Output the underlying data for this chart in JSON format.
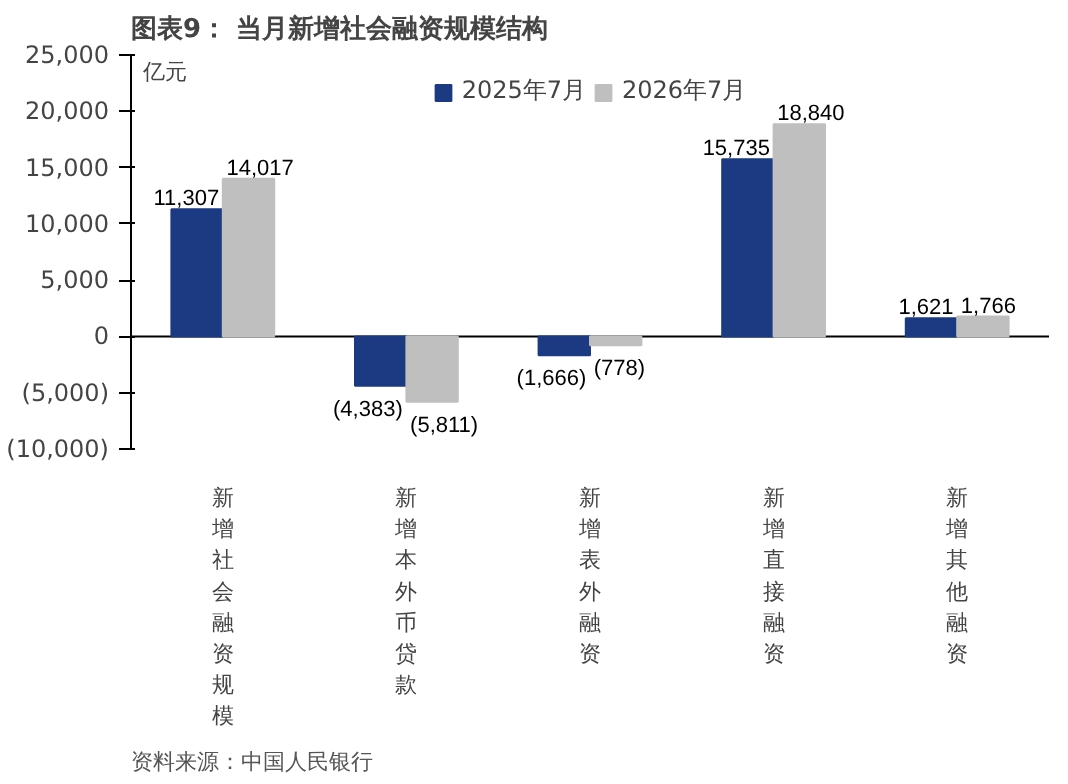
{
  "chart_data": {
    "type": "bar",
    "title": "图表9：  当月新增社会融资规模结构",
    "ylabel": "亿元",
    "categories": [
      "新增社会融资规模",
      "新增本外币贷款",
      "新增表外融资",
      "新增直接融资",
      "新增其他融资"
    ],
    "series": [
      {
        "name": "2025年7月",
        "color": "#1b3a82",
        "values": [
          11307,
          -4383,
          -1666,
          15735,
          1621
        ],
        "value_labels": [
          "11,307",
          "(4,383)",
          "(1,666)",
          "15,735",
          "1,621"
        ]
      },
      {
        "name": "2026年7月",
        "color": "#bfbfbf",
        "values": [
          14017,
          -5811,
          -778,
          18840,
          1766
        ],
        "value_labels": [
          "14,017",
          "(5,811)",
          "(778)",
          "18,840",
          "1,766"
        ]
      }
    ],
    "ylim": [
      -10000,
      25000
    ],
    "yticks": [
      {
        "value": -10000,
        "label": "(10,000)"
      },
      {
        "value": -5000,
        "label": "(5,000)"
      },
      0,
      {
        "value": 5000,
        "label": "5,000"
      },
      {
        "value": 10000,
        "label": "10,000"
      },
      {
        "value": 15000,
        "label": "15,000"
      },
      {
        "value": 20000,
        "label": "20,000"
      },
      {
        "value": 25000,
        "label": "25,000"
      }
    ],
    "grid": false,
    "legend": "top",
    "ref_lines": [
      {
        "axis": "y",
        "value": 0,
        "color": "#000000"
      }
    ],
    "annotations": [
      "资料来源：中国人民银行"
    ]
  }
}
